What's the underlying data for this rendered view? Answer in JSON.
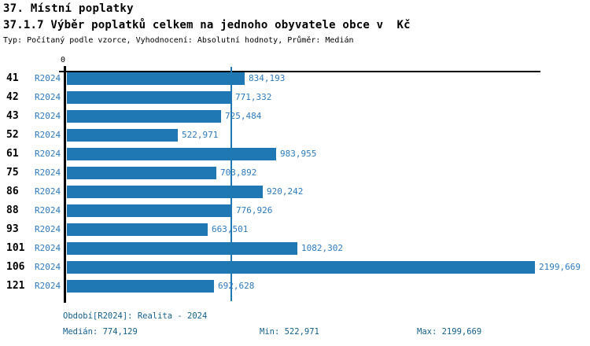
{
  "header": {
    "title": "37. Místní poplatky",
    "subtitle": "37.1.7 Výběr poplatků celkem na jednoho obyvatele obce v  Kč",
    "meta": "Typ: Počítaný podle vzorce, Vyhodnocení: Absolutní hodnoty, Průměr: Medián"
  },
  "chart_data": {
    "type": "bar",
    "orientation": "horizontal",
    "title": "37.1.7 Výběr poplatků celkem na jednoho obyvatele obce v Kč",
    "categories": [
      "41",
      "42",
      "43",
      "52",
      "61",
      "75",
      "86",
      "88",
      "93",
      "101",
      "106",
      "121"
    ],
    "series_label": "R2024",
    "values": [
      834.193,
      771.332,
      725.484,
      522.971,
      983.955,
      703.892,
      920.242,
      776.926,
      663.501,
      1082.302,
      2199.669,
      692.628
    ],
    "value_labels": [
      "834,193",
      "771,332",
      "725,484",
      "522,971",
      "983,955",
      "703,892",
      "920,242",
      "776,926",
      "663,501",
      "1082,302",
      "2199,669",
      "692,628"
    ],
    "x_axis_zero_label": "0",
    "xlim": [
      0,
      2199.669
    ],
    "median_value": 774.129,
    "grid": false,
    "legend_position": "none",
    "bar_color": "#1f77b4",
    "label_color": "#2d7abf",
    "median_line_color": "#1f77b4",
    "footer_text_color": "#135f8c"
  },
  "footer": {
    "period": "Období[R2024]: Realita - 2024",
    "median": "Medián: 774,129",
    "min": "Min: 522,971",
    "max": "Max: 2199,669"
  }
}
